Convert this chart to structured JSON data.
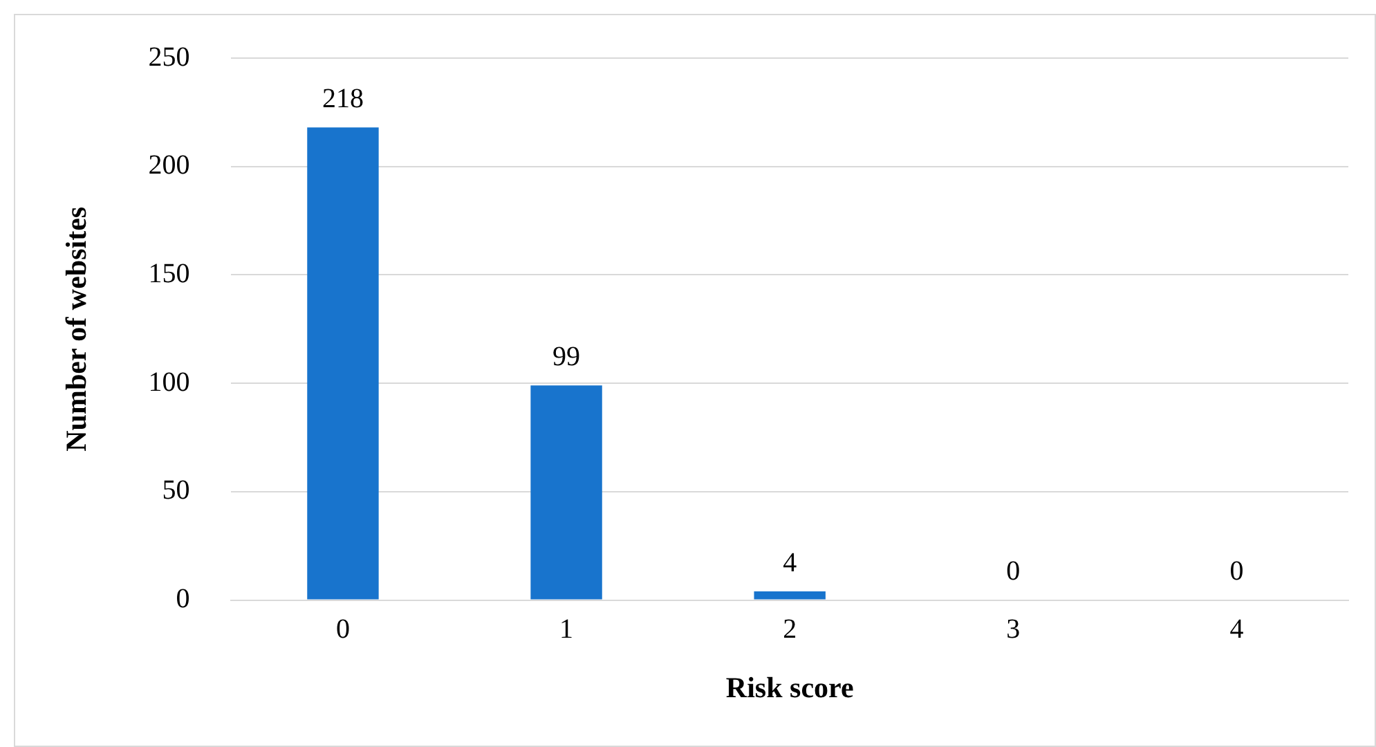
{
  "chart_data": {
    "type": "bar",
    "xlabel": "Risk score",
    "ylabel": "Number of websites",
    "categories": [
      "0",
      "1",
      "2",
      "3",
      "4"
    ],
    "values": [
      218,
      99,
      4,
      0,
      0
    ],
    "color": "#1874cd",
    "ylim": [
      0,
      250
    ],
    "yticks": [
      0,
      50,
      100,
      150,
      200,
      250
    ],
    "grid": "y",
    "data_labels": true
  }
}
